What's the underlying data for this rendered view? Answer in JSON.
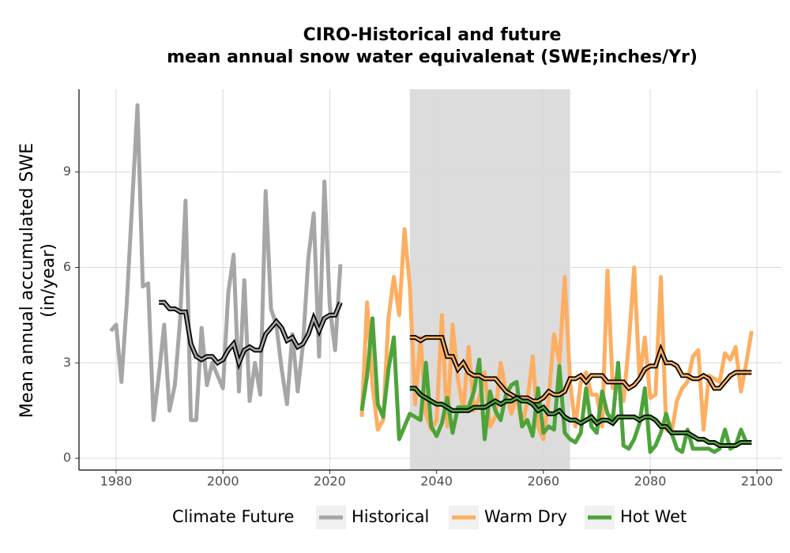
{
  "chart_data": {
    "type": "line",
    "title": [
      "CIRO-Historical and future",
      "mean annual snow water equivalenat (SWE;inches/Yr)"
    ],
    "ylabel": [
      "Mean annual accumulated SWE",
      "(in/year)"
    ],
    "legend_title": "Climate Future",
    "legend_position": "bottom",
    "grid": true,
    "shade": {
      "x": [
        2035,
        2065
      ],
      "color": "#dcdcdc"
    },
    "trend_color": "#000000",
    "xlim": [
      1973.05,
      2104.7
    ],
    "ylim": [
      -0.37,
      11.6
    ],
    "xticks": [
      1980,
      2000,
      2020,
      2040,
      2060,
      2080,
      2100
    ],
    "yticks": [
      0,
      3,
      6,
      9
    ],
    "series": [
      {
        "name": "Historical",
        "color": "#a6a6a6",
        "x": [
          1979,
          1980,
          1981,
          1982,
          1983,
          1984,
          1985,
          1986,
          1987,
          1988,
          1989,
          1990,
          1991,
          1992,
          1993,
          1994,
          1995,
          1996,
          1997,
          1998,
          1999,
          2000,
          2001,
          2002,
          2003,
          2004,
          2005,
          2006,
          2007,
          2008,
          2009,
          2010,
          2011,
          2012,
          2013,
          2014,
          2015,
          2016,
          2017,
          2018,
          2019,
          2020,
          2021,
          2022
        ],
        "values": [
          4.0,
          4.2,
          2.4,
          4.9,
          8.0,
          11.1,
          5.4,
          5.5,
          1.2,
          2.6,
          4.2,
          1.5,
          2.3,
          4.4,
          8.1,
          1.2,
          1.2,
          4.1,
          2.3,
          3.0,
          2.6,
          2.2,
          5.2,
          6.4,
          2.1,
          5.6,
          1.8,
          3.0,
          2.0,
          8.4,
          4.7,
          4.2,
          2.8,
          1.7,
          3.9,
          2.1,
          3.6,
          6.3,
          7.7,
          3.2,
          8.7,
          4.8,
          3.4,
          6.1
        ],
        "trend": {
          "x": [
            1988,
            1989,
            1990,
            1991,
            1992,
            1993,
            1994,
            1995,
            1996,
            1997,
            1998,
            1999,
            2000,
            2001,
            2002,
            2003,
            2004,
            2005,
            2006,
            2007,
            2008,
            2009,
            2010,
            2011,
            2012,
            2013,
            2014,
            2015,
            2016,
            2017,
            2018,
            2019,
            2020,
            2021,
            2022
          ],
          "values": [
            4.9,
            4.9,
            4.7,
            4.7,
            4.6,
            4.6,
            3.6,
            3.2,
            3.1,
            3.2,
            3.2,
            3.0,
            3.1,
            3.4,
            3.6,
            3.0,
            3.4,
            3.5,
            3.4,
            3.4,
            3.9,
            4.1,
            4.3,
            4.1,
            3.7,
            3.8,
            3.5,
            3.6,
            3.9,
            4.4,
            4.0,
            4.4,
            4.5,
            4.5,
            4.9
          ]
        }
      },
      {
        "name": "Warm Dry",
        "color": "#fdae61",
        "x": [
          2026,
          2027,
          2028,
          2029,
          2030,
          2031,
          2032,
          2033,
          2034,
          2035,
          2036,
          2037,
          2038,
          2039,
          2040,
          2041,
          2042,
          2043,
          2044,
          2045,
          2046,
          2047,
          2048,
          2049,
          2050,
          2051,
          2052,
          2053,
          2054,
          2055,
          2056,
          2057,
          2058,
          2059,
          2060,
          2061,
          2062,
          2063,
          2064,
          2065,
          2066,
          2067,
          2068,
          2069,
          2070,
          2071,
          2072,
          2073,
          2074,
          2075,
          2076,
          2077,
          2078,
          2079,
          2080,
          2081,
          2082,
          2083,
          2084,
          2085,
          2086,
          2087,
          2088,
          2089,
          2090,
          2091,
          2092,
          2093,
          2094,
          2095,
          2096,
          2097,
          2098,
          2099
        ],
        "values": [
          1.3,
          4.9,
          2.3,
          0.9,
          1.2,
          4.4,
          5.7,
          4.5,
          7.2,
          5.4,
          1.7,
          3.8,
          1.4,
          0.9,
          1.2,
          4.5,
          1.0,
          4.2,
          2.5,
          1.5,
          3.5,
          1.5,
          1.9,
          2.7,
          1.0,
          1.3,
          3.0,
          2.1,
          1.4,
          2.0,
          1.0,
          1.8,
          3.2,
          1.0,
          0.6,
          1.9,
          3.9,
          3.0,
          5.7,
          2.4,
          1.0,
          2.4,
          2.7,
          2.0,
          2.0,
          1.0,
          5.9,
          2.2,
          2.7,
          1.8,
          3.6,
          6.0,
          2.5,
          3.8,
          1.9,
          2.0,
          5.7,
          0.9,
          0.8,
          1.8,
          2.2,
          2.4,
          3.2,
          3.4,
          0.9,
          2.6,
          2.5,
          2.4,
          3.3,
          3.1,
          3.5,
          2.1,
          3.0,
          4.0
        ],
        "trend": {
          "x": [
            2035,
            2036,
            2037,
            2038,
            2039,
            2040,
            2041,
            2042,
            2043,
            2044,
            2045,
            2046,
            2047,
            2048,
            2049,
            2050,
            2051,
            2052,
            2053,
            2054,
            2055,
            2056,
            2057,
            2058,
            2059,
            2060,
            2061,
            2062,
            2063,
            2064,
            2065,
            2066,
            2067,
            2068,
            2069,
            2070,
            2071,
            2072,
            2073,
            2074,
            2075,
            2076,
            2077,
            2078,
            2079,
            2080,
            2081,
            2082,
            2083,
            2084,
            2085,
            2086,
            2087,
            2088,
            2089,
            2090,
            2091,
            2092,
            2093,
            2094,
            2095,
            2096,
            2097,
            2098,
            2099
          ],
          "values": [
            3.8,
            3.8,
            3.7,
            3.8,
            3.8,
            3.8,
            3.8,
            3.2,
            3.2,
            2.8,
            3.0,
            2.7,
            2.6,
            2.6,
            2.5,
            2.5,
            2.5,
            2.3,
            2.1,
            2.0,
            1.9,
            1.9,
            1.9,
            1.8,
            1.8,
            1.9,
            2.1,
            2.0,
            2.0,
            2.1,
            2.5,
            2.5,
            2.6,
            2.4,
            2.6,
            2.6,
            2.6,
            2.4,
            2.4,
            2.4,
            2.4,
            2.2,
            2.3,
            2.5,
            2.8,
            2.9,
            2.9,
            3.4,
            3.0,
            3.0,
            2.9,
            2.6,
            2.6,
            2.5,
            2.5,
            2.6,
            2.5,
            2.2,
            2.2,
            2.4,
            2.6,
            2.7,
            2.7,
            2.7,
            2.7
          ]
        }
      },
      {
        "name": "Hot Wet",
        "color": "#4da33a",
        "x": [
          2026,
          2027,
          2028,
          2029,
          2030,
          2031,
          2032,
          2033,
          2034,
          2035,
          2036,
          2037,
          2038,
          2039,
          2040,
          2041,
          2042,
          2043,
          2044,
          2045,
          2046,
          2047,
          2048,
          2049,
          2050,
          2051,
          2052,
          2053,
          2054,
          2055,
          2056,
          2057,
          2058,
          2059,
          2060,
          2061,
          2062,
          2063,
          2064,
          2065,
          2066,
          2067,
          2068,
          2069,
          2070,
          2071,
          2072,
          2073,
          2074,
          2075,
          2076,
          2077,
          2078,
          2079,
          2080,
          2081,
          2082,
          2083,
          2084,
          2085,
          2086,
          2087,
          2088,
          2089,
          2090,
          2091,
          2092,
          2093,
          2094,
          2095,
          2096,
          2097,
          2098,
          2099
        ],
        "values": [
          1.5,
          2.6,
          4.4,
          1.7,
          1.3,
          2.8,
          3.8,
          0.6,
          1.0,
          1.4,
          1.3,
          1.2,
          3.0,
          1.0,
          0.7,
          1.1,
          1.9,
          0.8,
          1.6,
          1.6,
          1.6,
          2.1,
          3.1,
          0.6,
          2.1,
          1.5,
          1.2,
          2.0,
          2.3,
          2.4,
          1.0,
          1.2,
          0.7,
          2.2,
          0.8,
          1.0,
          0.9,
          2.9,
          0.8,
          0.6,
          0.5,
          0.8,
          2.2,
          1.0,
          0.8,
          2.1,
          1.4,
          1.2,
          3.0,
          0.4,
          0.3,
          0.6,
          1.1,
          2.2,
          0.2,
          0.4,
          0.8,
          1.4,
          0.8,
          0.3,
          0.2,
          0.9,
          0.3,
          0.3,
          0.3,
          0.3,
          0.2,
          0.3,
          0.9,
          0.3,
          0.4,
          0.9,
          0.5,
          0.5
        ],
        "trend": {
          "x": [
            2035,
            2036,
            2037,
            2038,
            2039,
            2040,
            2041,
            2042,
            2043,
            2044,
            2045,
            2046,
            2047,
            2048,
            2049,
            2050,
            2051,
            2052,
            2053,
            2054,
            2055,
            2056,
            2057,
            2058,
            2059,
            2060,
            2061,
            2062,
            2063,
            2064,
            2065,
            2066,
            2067,
            2068,
            2069,
            2070,
            2071,
            2072,
            2073,
            2074,
            2075,
            2076,
            2077,
            2078,
            2079,
            2080,
            2081,
            2082,
            2083,
            2084,
            2085,
            2086,
            2087,
            2088,
            2089,
            2090,
            2091,
            2092,
            2093,
            2094,
            2095,
            2096,
            2097,
            2098,
            2099
          ],
          "values": [
            2.2,
            2.2,
            2.0,
            1.9,
            1.8,
            1.7,
            1.7,
            1.6,
            1.5,
            1.5,
            1.5,
            1.5,
            1.6,
            1.6,
            1.6,
            1.7,
            1.8,
            1.7,
            1.8,
            1.8,
            1.9,
            1.8,
            1.8,
            1.7,
            1.5,
            1.6,
            1.4,
            1.4,
            1.5,
            1.3,
            1.2,
            1.2,
            1.1,
            1.2,
            1.3,
            1.1,
            1.2,
            1.2,
            1.1,
            1.3,
            1.3,
            1.3,
            1.3,
            1.2,
            1.3,
            1.3,
            1.2,
            1.0,
            1.0,
            0.8,
            0.8,
            0.8,
            0.8,
            0.7,
            0.6,
            0.6,
            0.5,
            0.5,
            0.4,
            0.4,
            0.4,
            0.4,
            0.5,
            0.5,
            0.5
          ]
        }
      }
    ]
  }
}
